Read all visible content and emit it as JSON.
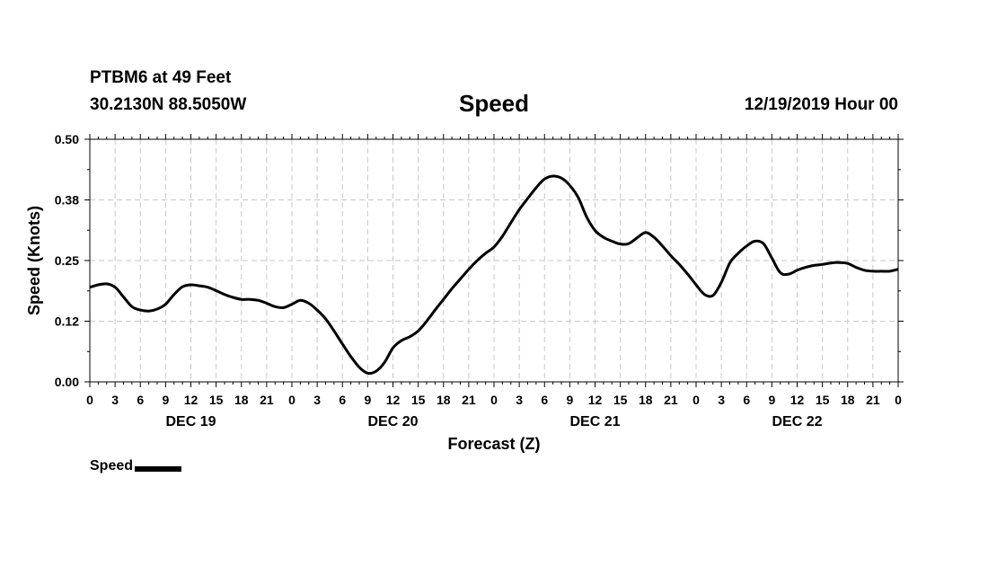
{
  "header": {
    "station": "PTBM6 at 49 Feet",
    "coords": "30.2130N 88.5050W",
    "title": "Speed",
    "datetime": "12/19/2019 Hour 00"
  },
  "legend": {
    "label": "Speed"
  },
  "chart_data": {
    "type": "line",
    "title": "Speed",
    "xlabel": "Forecast (Z)",
    "ylabel": "Speed (Knots)",
    "ylim": [
      0,
      0.5
    ],
    "yticks": [
      "0.00",
      "0.12",
      "0.25",
      "0.38",
      "0.50"
    ],
    "xlim": [
      0,
      96
    ],
    "xtick_labels": [
      "0",
      "3",
      "6",
      "9",
      "12",
      "15",
      "18",
      "21",
      "0",
      "3",
      "6",
      "9",
      "12",
      "15",
      "18",
      "21",
      "0",
      "3",
      "6",
      "9",
      "12",
      "15",
      "18",
      "21",
      "0",
      "3",
      "6",
      "9",
      "12",
      "15",
      "18",
      "21",
      "0"
    ],
    "day_labels": [
      {
        "label": "DEC 19",
        "hour": 12
      },
      {
        "label": "DEC 20",
        "hour": 36
      },
      {
        "label": "DEC 21",
        "hour": 60
      },
      {
        "label": "DEC 22",
        "hour": 84
      }
    ],
    "grid": true,
    "legend_position": "bottom-left",
    "series": [
      {
        "name": "Speed",
        "color": "#000000",
        "x": [
          0,
          1,
          2,
          3,
          4,
          5,
          6,
          7,
          8,
          9,
          10,
          11,
          12,
          13,
          14,
          15,
          16,
          17,
          18,
          19,
          20,
          21,
          22,
          23,
          24,
          25,
          26,
          27,
          28,
          29,
          30,
          31,
          32,
          33,
          34,
          35,
          36,
          37,
          38,
          39,
          40,
          41,
          42,
          43,
          44,
          45,
          46,
          47,
          48,
          49,
          50,
          51,
          52,
          53,
          54,
          55,
          56,
          57,
          58,
          59,
          60,
          61,
          62,
          63,
          64,
          65,
          66,
          67,
          68,
          69,
          70,
          71,
          72,
          73,
          74,
          75,
          76,
          77,
          78,
          79,
          80,
          81,
          82,
          83,
          84,
          85,
          86,
          87,
          88,
          89,
          90,
          91,
          92,
          93,
          94,
          95,
          96
        ],
        "y": [
          0.195,
          0.2,
          0.202,
          0.195,
          0.175,
          0.155,
          0.148,
          0.146,
          0.15,
          0.16,
          0.18,
          0.196,
          0.2,
          0.198,
          0.195,
          0.188,
          0.18,
          0.174,
          0.17,
          0.17,
          0.168,
          0.162,
          0.155,
          0.153,
          0.16,
          0.168,
          0.162,
          0.148,
          0.13,
          0.105,
          0.078,
          0.052,
          0.03,
          0.018,
          0.022,
          0.04,
          0.07,
          0.085,
          0.093,
          0.105,
          0.125,
          0.148,
          0.17,
          0.192,
          0.212,
          0.232,
          0.25,
          0.265,
          0.278,
          0.3,
          0.328,
          0.355,
          0.378,
          0.4,
          0.418,
          0.424,
          0.42,
          0.405,
          0.38,
          0.34,
          0.312,
          0.298,
          0.29,
          0.284,
          0.285,
          0.297,
          0.308,
          0.298,
          0.28,
          0.26,
          0.242,
          0.222,
          0.2,
          0.18,
          0.178,
          0.205,
          0.245,
          0.265,
          0.28,
          0.29,
          0.285,
          0.255,
          0.225,
          0.222,
          0.23,
          0.236,
          0.24,
          0.242,
          0.245,
          0.246,
          0.244,
          0.236,
          0.23,
          0.228,
          0.228,
          0.228,
          0.232
        ]
      }
    ]
  }
}
